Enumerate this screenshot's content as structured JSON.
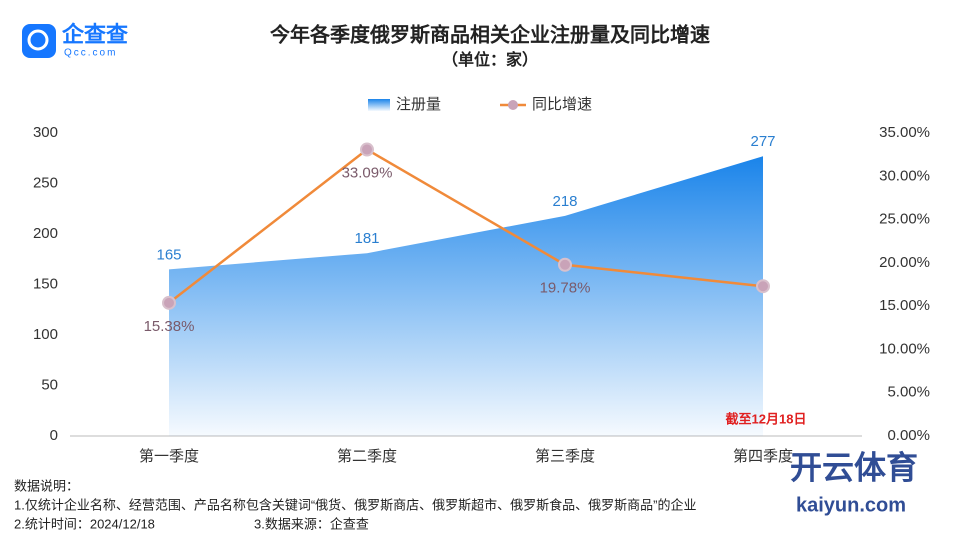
{
  "brand": {
    "name": "企查查",
    "site": "Qcc.com"
  },
  "chart_data": {
    "type": "area-line",
    "title": "今年各季度俄罗斯商品相关企业注册量及同比增速",
    "subtitle": "（单位：家）",
    "categories": [
      "第一季度",
      "第二季度",
      "第三季度",
      "第四季度"
    ],
    "series": [
      {
        "name": "注册量",
        "color": "#1a84ea",
        "values": [
          165,
          181,
          218,
          277
        ]
      },
      {
        "name": "同比增速",
        "color": "#f08a3a",
        "axis": "y2",
        "values": [
          15.38,
          33.09,
          19.78,
          17.3
        ],
        "value_labels": [
          "15.38%",
          "33.09%",
          "19.78%",
          null
        ]
      }
    ],
    "ylim": [
      0,
      300
    ],
    "yticks": [
      0,
      50,
      100,
      150,
      200,
      250,
      300
    ],
    "y2lim": [
      0,
      35
    ],
    "y2ticks": [
      {
        "value": 0,
        "label": "0.00%"
      },
      {
        "value": 5,
        "label": "5.00%"
      },
      {
        "value": 10,
        "label": "10.00%"
      },
      {
        "value": 15,
        "label": "15.00%"
      },
      {
        "value": 20,
        "label": "20.00%"
      },
      {
        "value": 25,
        "label": "25.00%"
      },
      {
        "value": 30,
        "label": "30.00%"
      },
      {
        "value": 35,
        "label": "35.00%"
      }
    ],
    "legend": "top",
    "annotation": "截至12月18日"
  },
  "notes": [
    "数据说明：",
    "1.仅统计企业名称、经营范围、产品名称包含关键词“俄货、俄罗斯商店、俄罗斯超市、俄罗斯食品、俄罗斯商品”的企业",
    "2.统计时间：2024/12/18",
    "3.数据来源：企查查"
  ],
  "watermark": {
    "name": "开云体育",
    "site": "kaiyun.com"
  }
}
